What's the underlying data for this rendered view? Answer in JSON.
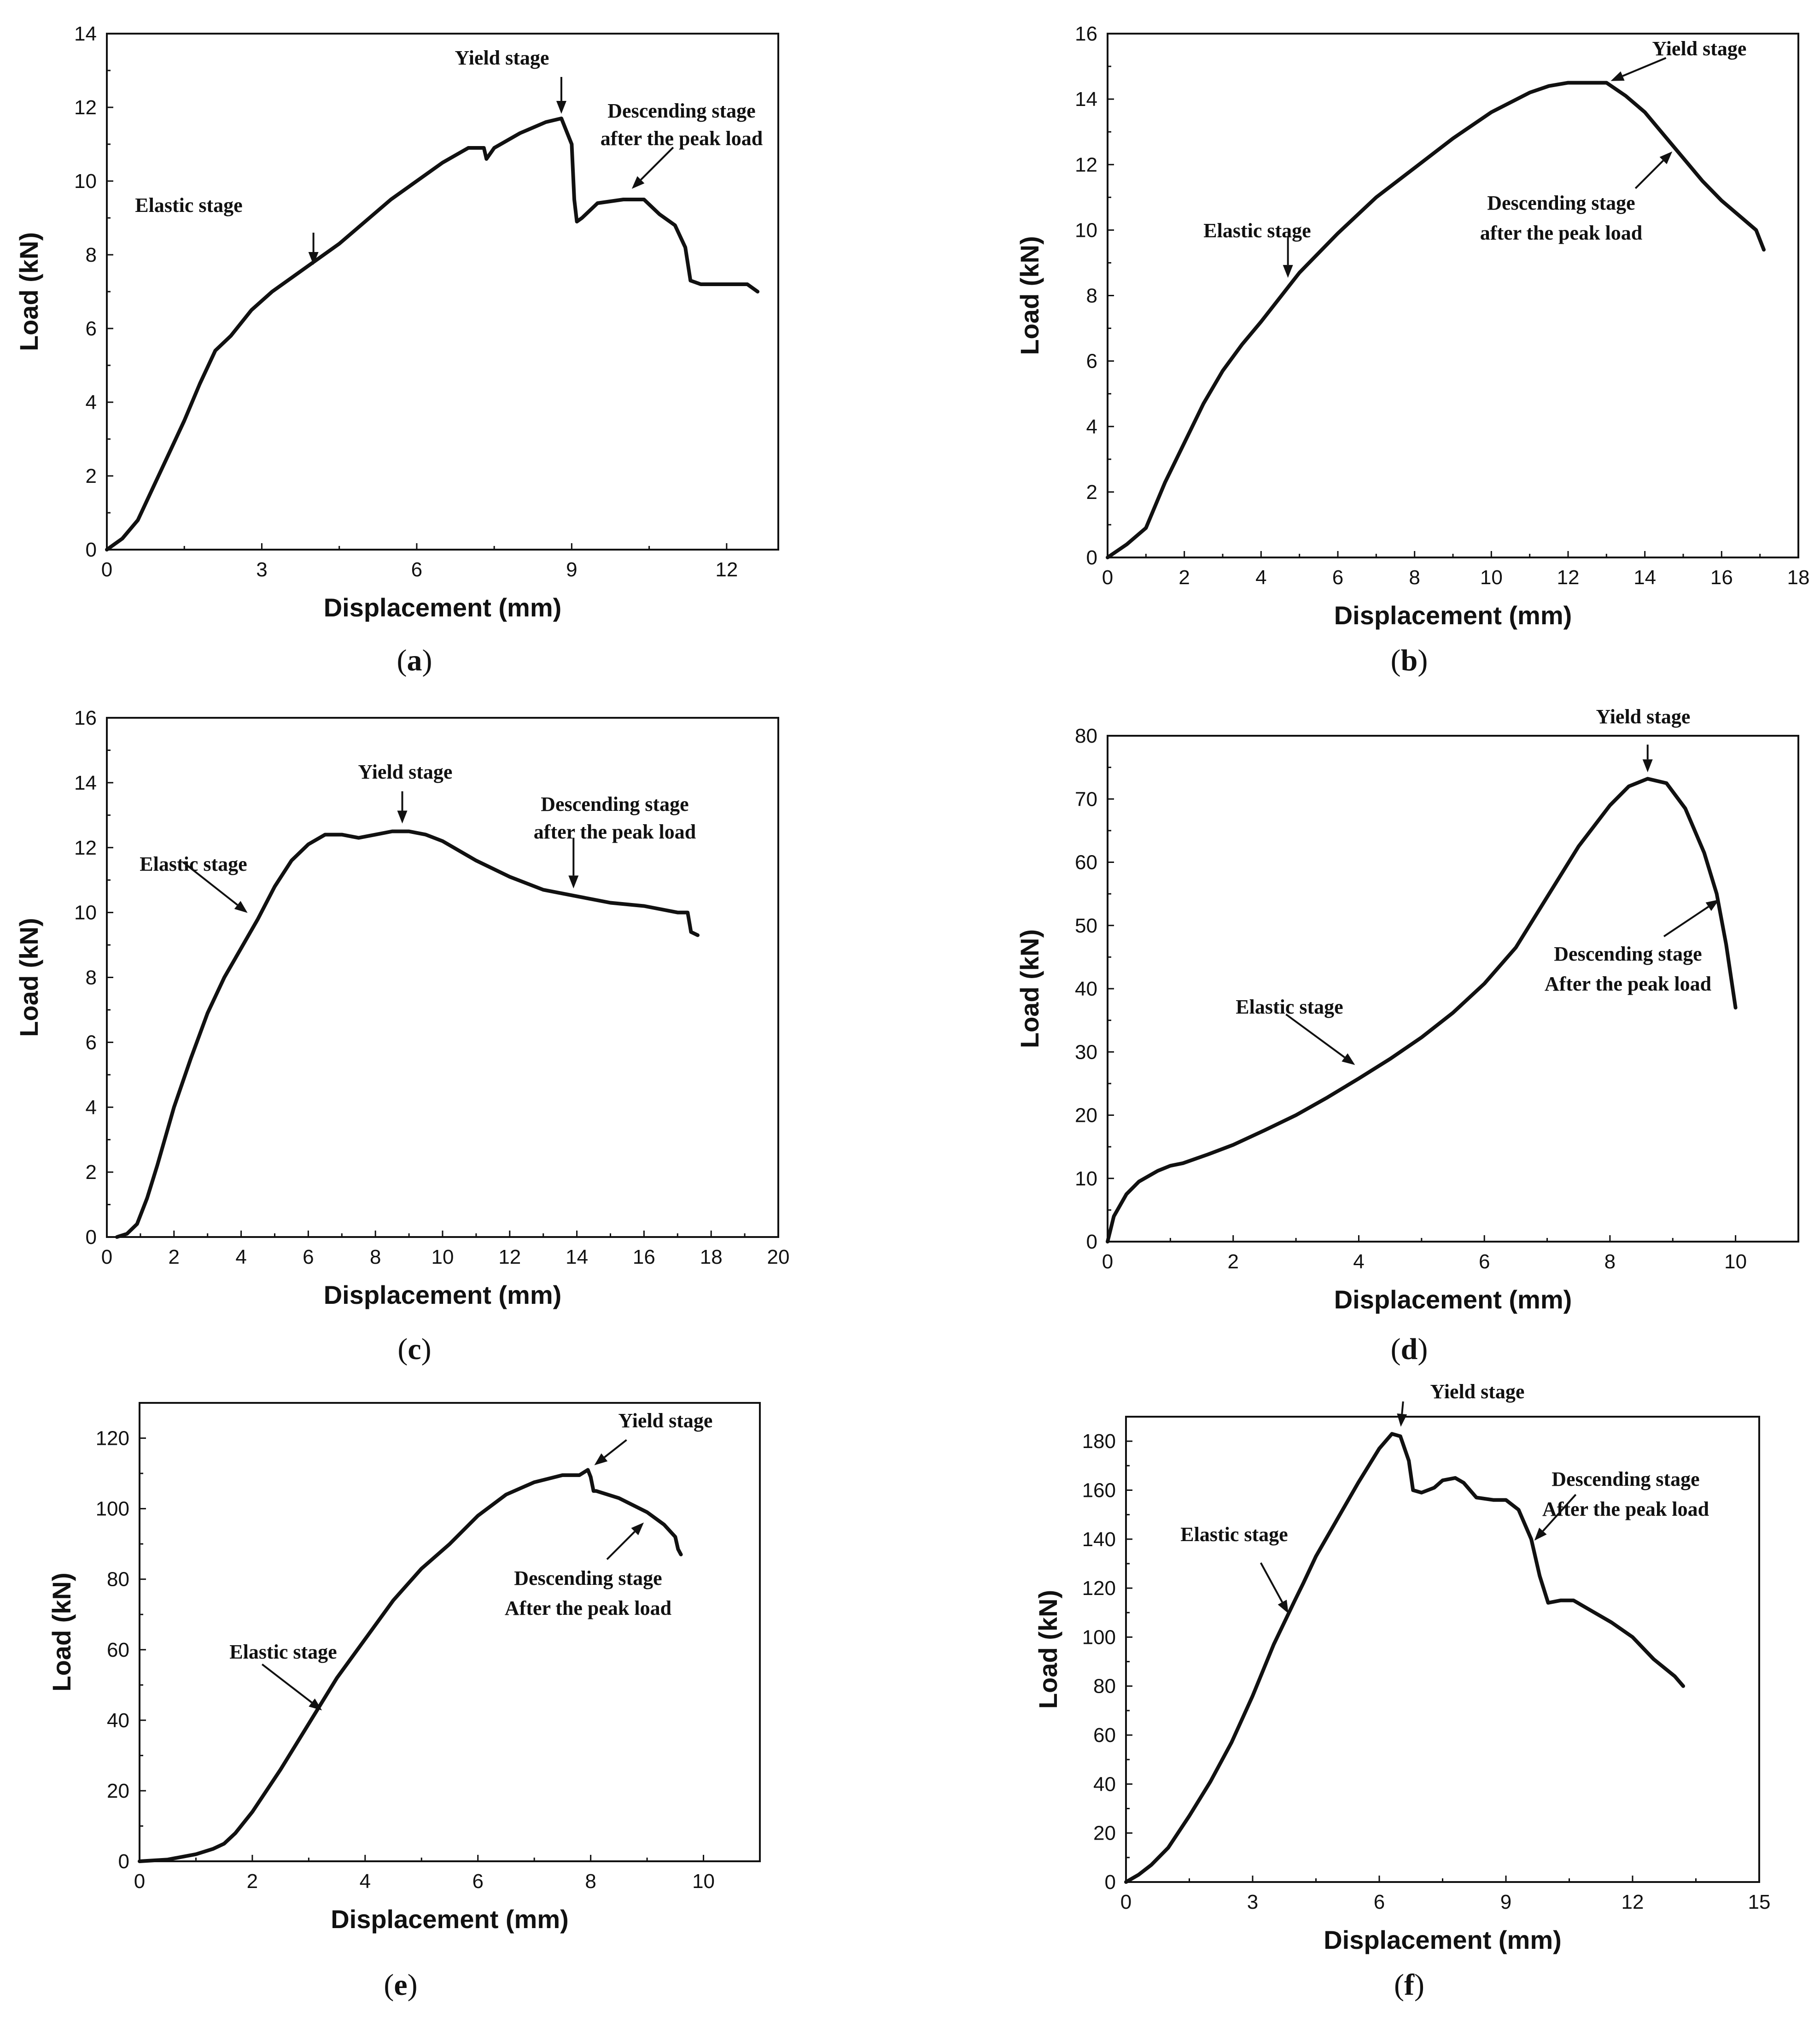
{
  "chart_data": [
    {
      "id": "a",
      "type": "line",
      "panel_label": "a",
      "xlabel": "Displacement (mm)",
      "ylabel": "Load (kN)",
      "xlim": [
        0,
        13
      ],
      "ylim": [
        0,
        14
      ],
      "xticks": [
        0,
        3,
        6,
        9,
        12
      ],
      "yticks": [
        0,
        2,
        4,
        6,
        8,
        10,
        12,
        14
      ],
      "series": [
        {
          "name": "load-displacement",
          "x": [
            0,
            0.3,
            0.6,
            0.9,
            1.2,
            1.5,
            1.8,
            2.1,
            2.4,
            2.8,
            3.2,
            3.6,
            4.0,
            4.5,
            5.0,
            5.5,
            6.0,
            6.5,
            7.0,
            7.3,
            7.35,
            7.5,
            8.0,
            8.5,
            8.8,
            9.0,
            9.05,
            9.1,
            9.2,
            9.5,
            10.0,
            10.4,
            10.7,
            11.0,
            11.2,
            11.3,
            11.5,
            12.0,
            12.4,
            12.6
          ],
          "y": [
            0,
            0.3,
            0.8,
            1.7,
            2.6,
            3.5,
            4.5,
            5.4,
            5.8,
            6.5,
            7.0,
            7.4,
            7.8,
            8.3,
            8.9,
            9.5,
            10.0,
            10.5,
            10.9,
            10.9,
            10.6,
            10.9,
            11.3,
            11.6,
            11.7,
            11.0,
            9.5,
            8.9,
            9.0,
            9.4,
            9.5,
            9.5,
            9.1,
            8.8,
            8.2,
            7.3,
            7.2,
            7.2,
            7.2,
            7.0
          ]
        }
      ],
      "annotations": [
        {
          "text": "Yield stage",
          "x": 8.8,
          "y": 11.7
        },
        {
          "text": "Elastic stage",
          "x": 4.0,
          "y": 7.6
        },
        {
          "text": "Descending stage",
          "text2": "after the peak load",
          "x": 10.1,
          "y": 9.7
        }
      ]
    },
    {
      "id": "b",
      "type": "line",
      "panel_label": "b",
      "xlabel": "Displacement (mm)",
      "ylabel": "Load (kN)",
      "xlim": [
        0,
        18
      ],
      "ylim": [
        0,
        16
      ],
      "xticks": [
        0,
        2,
        4,
        6,
        8,
        10,
        12,
        14,
        16,
        18
      ],
      "yticks": [
        0,
        2,
        4,
        6,
        8,
        10,
        12,
        14,
        16
      ],
      "series": [
        {
          "name": "load-displacement",
          "x": [
            0,
            0.5,
            1.0,
            1.5,
            2.0,
            2.5,
            3.0,
            3.5,
            4.0,
            5.0,
            6.0,
            7.0,
            8.0,
            9.0,
            10.0,
            11.0,
            11.5,
            12.0,
            12.5,
            13.0,
            13.5,
            14.0,
            14.5,
            15.0,
            15.5,
            16.0,
            16.5,
            16.9,
            17.1
          ],
          "y": [
            0,
            0.4,
            0.9,
            2.3,
            3.5,
            4.7,
            5.7,
            6.5,
            7.2,
            8.7,
            9.9,
            11.0,
            11.9,
            12.8,
            13.6,
            14.2,
            14.4,
            14.5,
            14.5,
            14.5,
            14.1,
            13.6,
            12.9,
            12.2,
            11.5,
            10.9,
            10.4,
            10.0,
            9.4
          ]
        }
      ],
      "annotations": [
        {
          "text": "Yield stage",
          "x": 13.0,
          "y": 14.5
        },
        {
          "text": "Elastic stage",
          "x": 4.7,
          "y": 8.4
        },
        {
          "text": "Descending stage",
          "text2": "after the peak load",
          "x": 14.8,
          "y": 12.5
        }
      ]
    },
    {
      "id": "c",
      "type": "line",
      "panel_label": "c",
      "xlabel": "Displacement (mm)",
      "ylabel": "Load (kN)",
      "xlim": [
        0,
        20
      ],
      "ylim": [
        0,
        16
      ],
      "xticks": [
        0,
        2,
        4,
        6,
        8,
        10,
        12,
        14,
        16,
        18,
        20
      ],
      "yticks": [
        0,
        2,
        4,
        6,
        8,
        10,
        12,
        14,
        16
      ],
      "series": [
        {
          "name": "load-displacement",
          "x": [
            0.3,
            0.6,
            0.9,
            1.2,
            1.5,
            2.0,
            2.5,
            3.0,
            3.5,
            4.0,
            4.5,
            5.0,
            5.5,
            6.0,
            6.5,
            7.0,
            7.5,
            8.0,
            8.5,
            9.0,
            9.5,
            10.0,
            11.0,
            12.0,
            13.0,
            14.0,
            15.0,
            16.0,
            17.0,
            17.3,
            17.4,
            17.6
          ],
          "y": [
            0,
            0.1,
            0.4,
            1.2,
            2.2,
            4.0,
            5.5,
            6.9,
            8.0,
            8.9,
            9.8,
            10.8,
            11.6,
            12.1,
            12.4,
            12.4,
            12.3,
            12.4,
            12.5,
            12.5,
            12.4,
            12.2,
            11.6,
            11.1,
            10.7,
            10.5,
            10.3,
            10.2,
            10.0,
            10.0,
            9.4,
            9.3
          ]
        }
      ],
      "annotations": [
        {
          "text": "Yield stage",
          "x": 8.8,
          "y": 12.6
        },
        {
          "text": "Elastic stage",
          "x": 4.3,
          "y": 9.9
        },
        {
          "text": "Descending stage",
          "text2": "after the peak load",
          "x": 13.9,
          "y": 10.6
        }
      ]
    },
    {
      "id": "d",
      "type": "line",
      "panel_label": "d",
      "xlabel": "Displacement (mm)",
      "ylabel": "Load (kN)",
      "xlim": [
        0,
        11
      ],
      "ylim": [
        0,
        80
      ],
      "xticks": [
        0,
        2,
        4,
        6,
        8,
        10
      ],
      "yticks": [
        0,
        10,
        20,
        30,
        40,
        50,
        60,
        70,
        80
      ],
      "series": [
        {
          "name": "load-displacement",
          "x": [
            0,
            0.1,
            0.3,
            0.5,
            0.8,
            1.0,
            1.2,
            1.6,
            2.0,
            2.5,
            3.0,
            3.5,
            4.0,
            4.5,
            5.0,
            5.5,
            6.0,
            6.5,
            7.0,
            7.5,
            8.0,
            8.3,
            8.6,
            8.9,
            9.2,
            9.5,
            9.7,
            9.85,
            10.0
          ],
          "y": [
            0,
            4,
            7.5,
            9.5,
            11.2,
            12.0,
            12.4,
            13.8,
            15.3,
            17.6,
            20.0,
            22.8,
            25.8,
            28.9,
            32.3,
            36.2,
            40.8,
            46.5,
            54.5,
            62.5,
            69.0,
            72.0,
            73.2,
            72.5,
            68.5,
            61.5,
            55.0,
            47.0,
            37.0
          ]
        }
      ],
      "annotations": [
        {
          "text": "Yield stage",
          "x": 8.6,
          "y": 73.5
        },
        {
          "text": "Elastic stage",
          "x": 4.0,
          "y": 27.5
        },
        {
          "text": "Descending stage",
          "text2": "After the peak load",
          "x": 9.8,
          "y": 54.5
        }
      ]
    },
    {
      "id": "e",
      "type": "line",
      "panel_label": "e",
      "xlabel": "Displacement (mm)",
      "ylabel": "Load (kN)",
      "xlim": [
        0,
        11
      ],
      "ylim": [
        0,
        130
      ],
      "xticks": [
        0,
        2,
        4,
        6,
        8,
        10
      ],
      "yticks": [
        0,
        20,
        40,
        60,
        80,
        100,
        120
      ],
      "series": [
        {
          "name": "load-displacement",
          "x": [
            0,
            0.5,
            1.0,
            1.3,
            1.5,
            1.7,
            2.0,
            2.5,
            3.0,
            3.5,
            4.0,
            4.5,
            5.0,
            5.5,
            6.0,
            6.5,
            7.0,
            7.5,
            7.8,
            7.95,
            8.0,
            8.05,
            8.1,
            8.5,
            9.0,
            9.3,
            9.5,
            9.55,
            9.6
          ],
          "y": [
            0,
            0.5,
            2,
            3.5,
            5,
            8,
            14,
            26,
            39,
            52,
            63,
            74,
            83,
            90,
            98,
            104,
            107.5,
            109.5,
            109.5,
            111,
            109,
            105,
            105,
            103,
            99,
            95.5,
            92,
            88.5,
            87
          ]
        }
      ],
      "annotations": [
        {
          "text": "Yield stage",
          "x": 8.0,
          "y": 111.5
        },
        {
          "text": "Elastic stage",
          "x": 3.3,
          "y": 42
        },
        {
          "text": "Descending stage",
          "text2": "After the peak load",
          "x": 9.0,
          "y": 97
        }
      ]
    },
    {
      "id": "f",
      "type": "line",
      "panel_label": "f",
      "xlabel": "Displacement (mm)",
      "ylabel": "Load (kN)",
      "xlim": [
        0,
        15
      ],
      "ylim": [
        0,
        190
      ],
      "xticks": [
        0,
        3,
        6,
        9,
        12,
        15
      ],
      "yticks": [
        0,
        20,
        40,
        60,
        80,
        100,
        120,
        140,
        160,
        180
      ],
      "series": [
        {
          "name": "load-displacement",
          "x": [
            0,
            0.3,
            0.6,
            1.0,
            1.5,
            2.0,
            2.5,
            3.0,
            3.5,
            4.0,
            4.2,
            4.5,
            5.0,
            5.5,
            6.0,
            6.3,
            6.5,
            6.7,
            6.8,
            7.0,
            7.3,
            7.5,
            7.8,
            8.0,
            8.3,
            8.7,
            9.0,
            9.3,
            9.6,
            9.8,
            10.0,
            10.3,
            10.6,
            11.0,
            11.5,
            12.0,
            12.5,
            13.0,
            13.2
          ],
          "y": [
            0,
            3,
            7,
            14,
            27,
            41,
            57,
            76,
            97,
            115,
            122,
            133,
            148,
            163,
            177,
            183,
            182,
            172,
            160,
            159,
            161,
            164,
            165,
            163,
            157,
            156,
            156,
            152,
            140,
            125,
            114,
            115,
            115,
            111,
            106,
            100,
            91,
            84,
            80
          ]
        }
      ],
      "annotations": [
        {
          "text": "Yield stage",
          "x": 6.5,
          "y": 184
        },
        {
          "text": "Elastic stage",
          "x": 3.9,
          "y": 108
        },
        {
          "text": "Descending stage",
          "text2": "After the peak load",
          "x": 9.6,
          "y": 138
        }
      ]
    }
  ]
}
